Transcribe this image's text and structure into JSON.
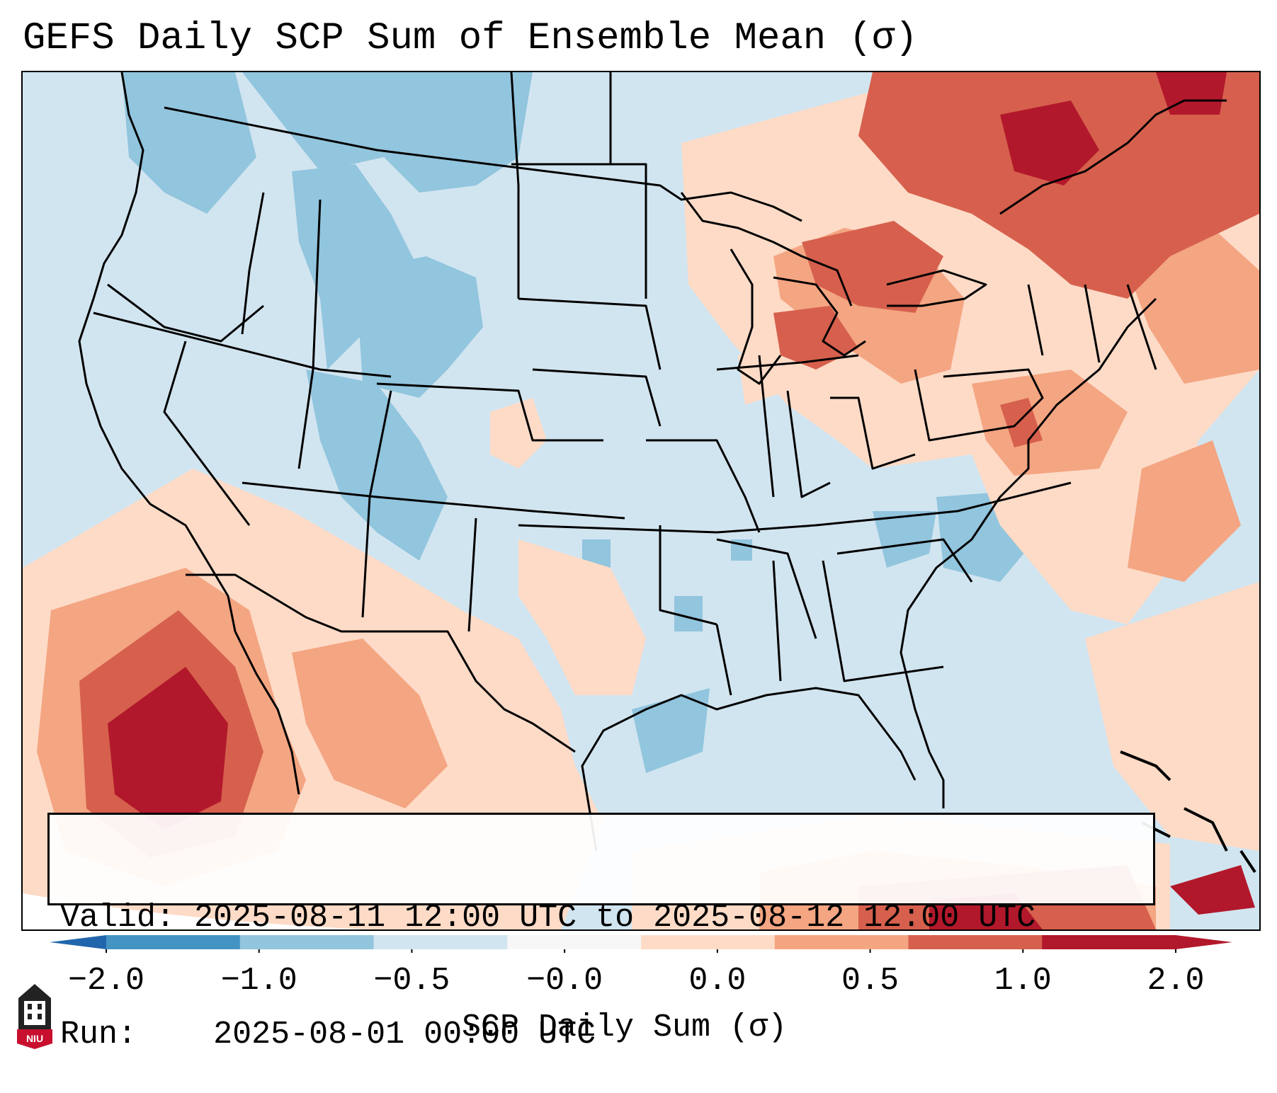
{
  "title": "GEFS Daily SCP Sum of Ensemble Mean (σ)",
  "info": {
    "valid_label": "Valid:",
    "valid_value": "2025-08-11 12:00 UTC to 2025-08-12 12:00 UTC",
    "run_label": "Run:",
    "run_value": "2025-08-01 00:00 UTC"
  },
  "colorbar": {
    "label": "SCP Daily Sum (σ)",
    "ticks": [
      "−2.0",
      "−1.0",
      "−0.5",
      "−0.0",
      "0.0",
      "0.5",
      "1.0",
      "2.0"
    ],
    "bins": [
      {
        "range": "-2.0 to -1.0",
        "color": "#4393c3"
      },
      {
        "range": "-1.0 to -0.5",
        "color": "#92c5de"
      },
      {
        "range": "-0.5 to -0.0",
        "color": "#d1e5f0"
      },
      {
        "range": "-0.0 to 0.0",
        "color": "#f7f7f7"
      },
      {
        "range": "0.0 to 0.5",
        "color": "#fddbc7"
      },
      {
        "range": "0.5 to 1.0",
        "color": "#f4a582"
      },
      {
        "range": "1.0 to 2.0",
        "color": "#d6604d"
      },
      {
        "range": "> 2.0",
        "color": "#b2182b"
      }
    ],
    "under_color": "#2166ac",
    "over_color": "#b2182b"
  },
  "map": {
    "background_color": "#d1e5f0",
    "border_color": "#000000"
  },
  "logo": {
    "text": "NIU",
    "color": "#c8102e"
  }
}
